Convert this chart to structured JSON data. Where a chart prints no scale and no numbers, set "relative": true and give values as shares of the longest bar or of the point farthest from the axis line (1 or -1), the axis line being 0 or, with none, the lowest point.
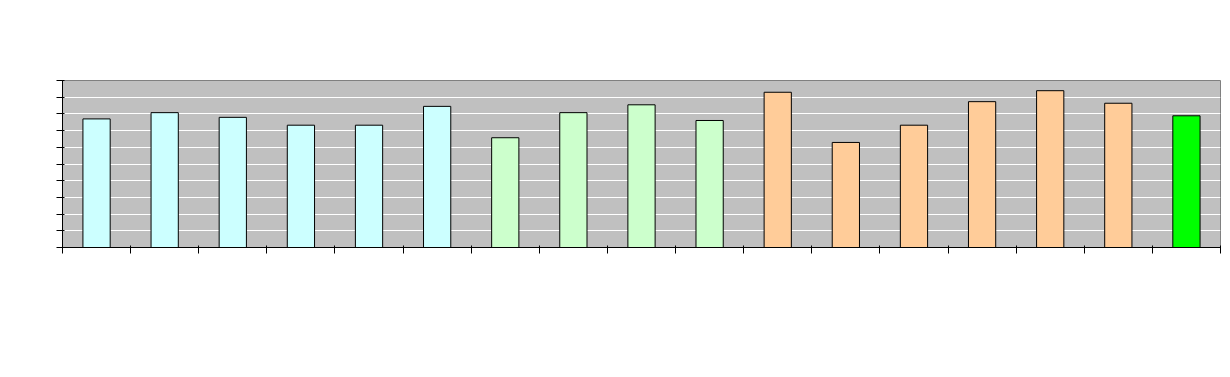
{
  "chart_data": {
    "type": "bar",
    "relative": true,
    "grid": "y",
    "categories": [
      null,
      null,
      null,
      null,
      null,
      null,
      null,
      null,
      null,
      null,
      null,
      null,
      null,
      null,
      null,
      null,
      null
    ],
    "values": [
      0.82,
      0.86,
      0.83,
      0.78,
      0.78,
      0.9,
      0.7,
      0.86,
      0.91,
      0.81,
      0.99,
      0.67,
      0.78,
      0.93,
      1,
      0.92,
      0.84
    ],
    "colors": [
      "#ccffff",
      "#ccffff",
      "#ccffff",
      "#ccffff",
      "#ccffff",
      "#ccffff",
      "#ccffcc",
      "#ccffcc",
      "#ccffcc",
      "#ccffcc",
      "#ffcc99",
      "#ffcc99",
      "#ffcc99",
      "#ffcc99",
      "#ffcc99",
      "#ffcc99",
      "#00ff00"
    ]
  }
}
